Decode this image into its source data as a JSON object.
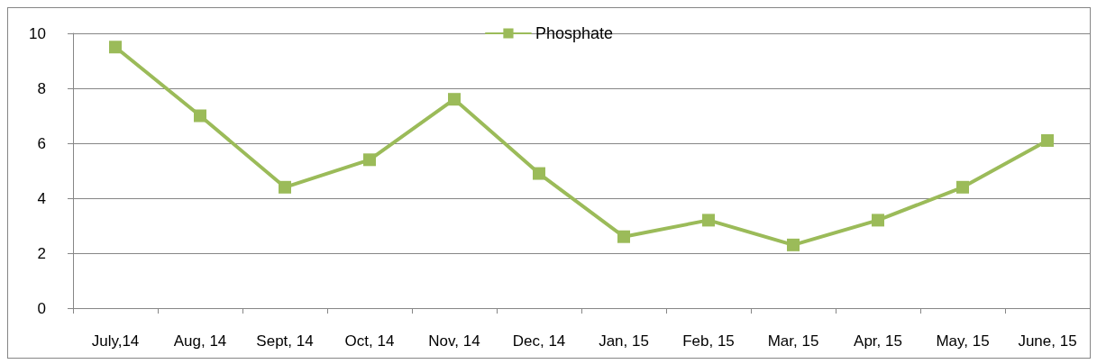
{
  "chart_data": {
    "type": "line",
    "categories": [
      "July,14",
      "Aug, 14",
      "Sept, 14",
      "Oct, 14",
      "Nov, 14",
      "Dec, 14",
      "Jan, 15",
      "Feb, 15",
      "Mar, 15",
      "Apr, 15",
      "May, 15",
      "June, 15"
    ],
    "series": [
      {
        "name": "Phosphate",
        "color": "#9bbb59",
        "values": [
          9.5,
          7.0,
          4.4,
          5.4,
          7.6,
          4.9,
          2.6,
          3.2,
          2.3,
          3.2,
          4.4,
          6.1
        ]
      }
    ],
    "ylim": [
      0,
      10
    ],
    "yticks": [
      0,
      2,
      4,
      6,
      8,
      10
    ],
    "grid": "y",
    "legend": "top",
    "marker": "square",
    "line_style": "solid"
  }
}
